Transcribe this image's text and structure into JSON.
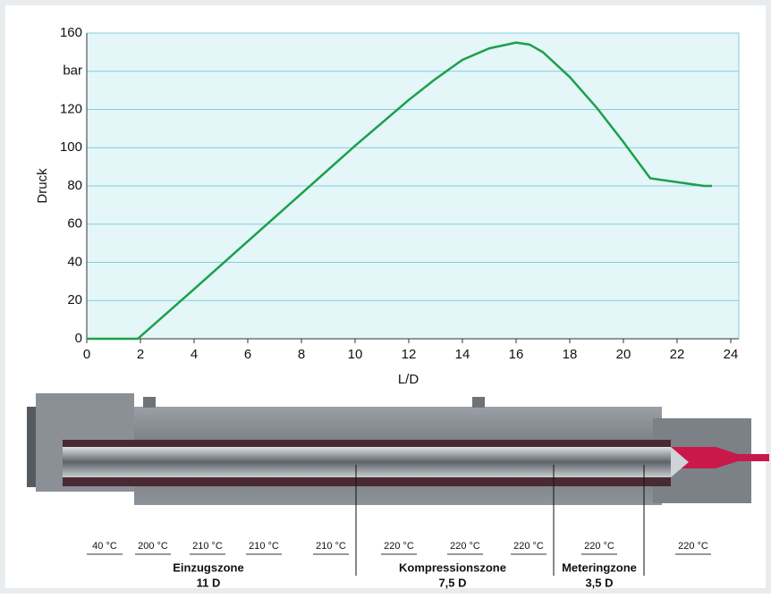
{
  "chart_data": {
    "type": "line",
    "y_label": "Druck",
    "x_label": "L/D",
    "x": [
      0,
      1.9,
      4,
      6,
      8,
      10,
      12,
      13,
      14,
      15,
      16,
      16.5,
      17,
      18,
      19,
      20,
      21,
      22,
      23,
      23.3
    ],
    "values": [
      0,
      0,
      26,
      51,
      76,
      101,
      125,
      136,
      146,
      152,
      155,
      154,
      150,
      137,
      121,
      103,
      84,
      82,
      80,
      80
    ],
    "color": "#1aa04a",
    "xlim": [
      0,
      24.3
    ],
    "ylim": [
      0,
      160
    ],
    "xticks": [
      0,
      2,
      4,
      6,
      8,
      10,
      12,
      14,
      16,
      18,
      20,
      22,
      24
    ],
    "yticks": [
      0,
      20,
      40,
      60,
      80,
      100,
      120,
      {
        "value": 140,
        "label": "bar"
      },
      160
    ],
    "grid": true
  },
  "illustration": {
    "temperatures": [
      "40 °C",
      "200 °C",
      "210 °C",
      "210 °C",
      "210 °C",
      "220 °C",
      "220 °C",
      "220 °C",
      "220 °C",
      "220 °C"
    ],
    "zones": [
      {
        "name": "Einzugszone",
        "length": "11 D"
      },
      {
        "name": "Kompressionszone",
        "length": "7,5 D"
      },
      {
        "name": "Meteringzone",
        "length": "3,5 D"
      }
    ]
  }
}
